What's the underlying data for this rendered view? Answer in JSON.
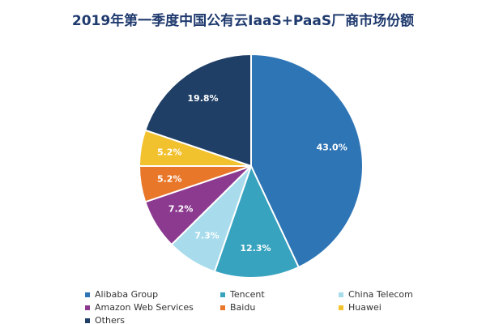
{
  "chart_data": {
    "type": "pie",
    "title": "2019年第一季度中国公有云IaaS+PaaS厂商市场份额",
    "categories": [
      "Alibaba Group",
      "Tencent",
      "China Telecom",
      "Amazon Web Services",
      "Baidu",
      "Huawei",
      "Others"
    ],
    "values": [
      43.0,
      12.3,
      7.3,
      7.2,
      5.2,
      5.2,
      19.8
    ],
    "value_labels": [
      "43.0%",
      "12.3%",
      "7.3%",
      "7.2%",
      "5.2%",
      "5.2%",
      "19.8%"
    ],
    "colors": [
      "#2e75b6",
      "#37a3bf",
      "#a8dcec",
      "#8b3a8f",
      "#e8772a",
      "#f2c12e",
      "#1f3f66"
    ],
    "legend": "bottom"
  }
}
